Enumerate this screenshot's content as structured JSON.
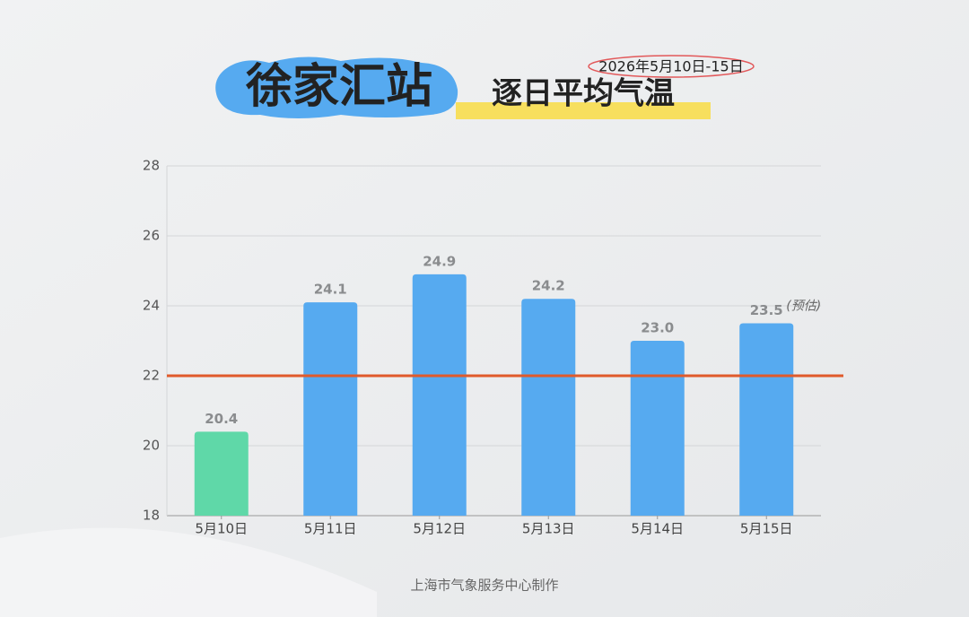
{
  "chart_data": {
    "type": "bar",
    "title": "徐家汇站",
    "subtitle": "逐日平均气温",
    "date_range": "2026年5月10日-15日",
    "categories": [
      "5月10日",
      "5月11日",
      "5月12日",
      "5月13日",
      "5月14日",
      "5月15日"
    ],
    "values": [
      20.4,
      24.1,
      24.9,
      24.2,
      23.0,
      23.5
    ],
    "value_labels": [
      "20.4",
      "24.1",
      "24.9",
      "24.2",
      "23.0",
      "23.5"
    ],
    "colors": [
      "#5fd8a8",
      "#56aaf0",
      "#56aaf0",
      "#56aaf0",
      "#56aaf0",
      "#56aaf0"
    ],
    "annotation": "(预估)",
    "reference_line": {
      "value": 22,
      "color": "#e05a2b"
    },
    "ylim": [
      18,
      28
    ],
    "yticks": [
      18,
      20,
      22,
      24,
      26,
      28
    ],
    "grid": true,
    "footer": "上海市气象服务中心制作"
  }
}
